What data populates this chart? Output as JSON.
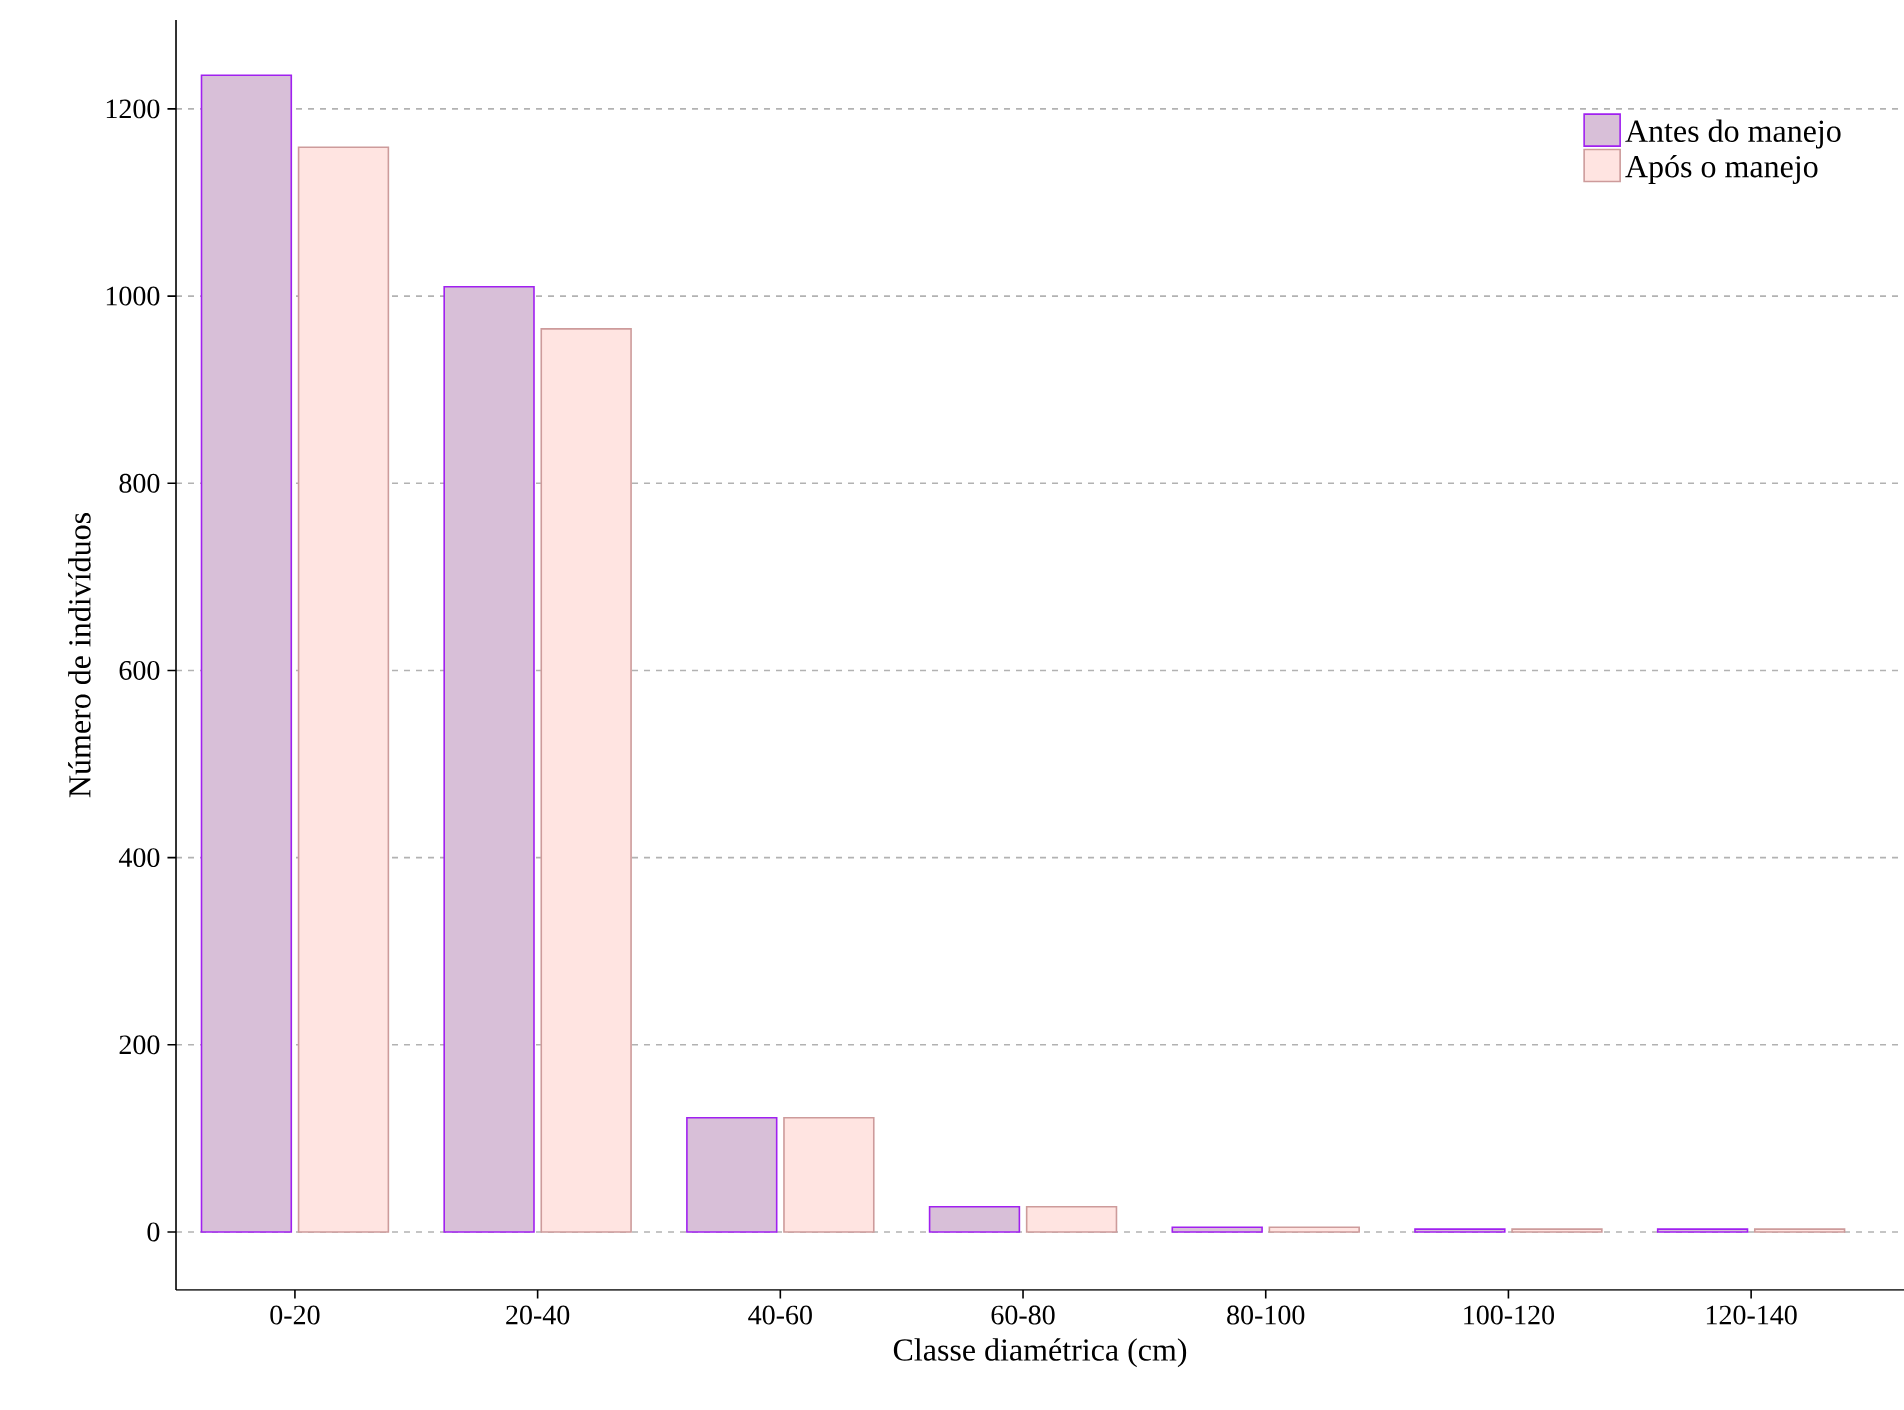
{
  "chart_data": {
    "type": "bar",
    "xlabel": "Classe diamétrica (cm)",
    "ylabel": "Número de indivíduos",
    "categories": [
      "0-20",
      "20-40",
      "40-60",
      "60-80",
      "80-100",
      "100-120",
      "120-140"
    ],
    "series": [
      {
        "name": "Antes do manejo",
        "color": "#d8bfd8",
        "values": [
          1236,
          1010,
          122,
          27,
          5,
          3,
          3
        ]
      },
      {
        "name": "Após o manejo",
        "color": "#ffe4e1",
        "values": [
          1159,
          965,
          122,
          27,
          5,
          3,
          3
        ]
      }
    ],
    "ylim": [
      -62,
      1295
    ],
    "yticks": [
      0,
      200,
      400,
      600,
      800,
      1000,
      1200
    ],
    "grid": "y",
    "legend": "top right"
  }
}
